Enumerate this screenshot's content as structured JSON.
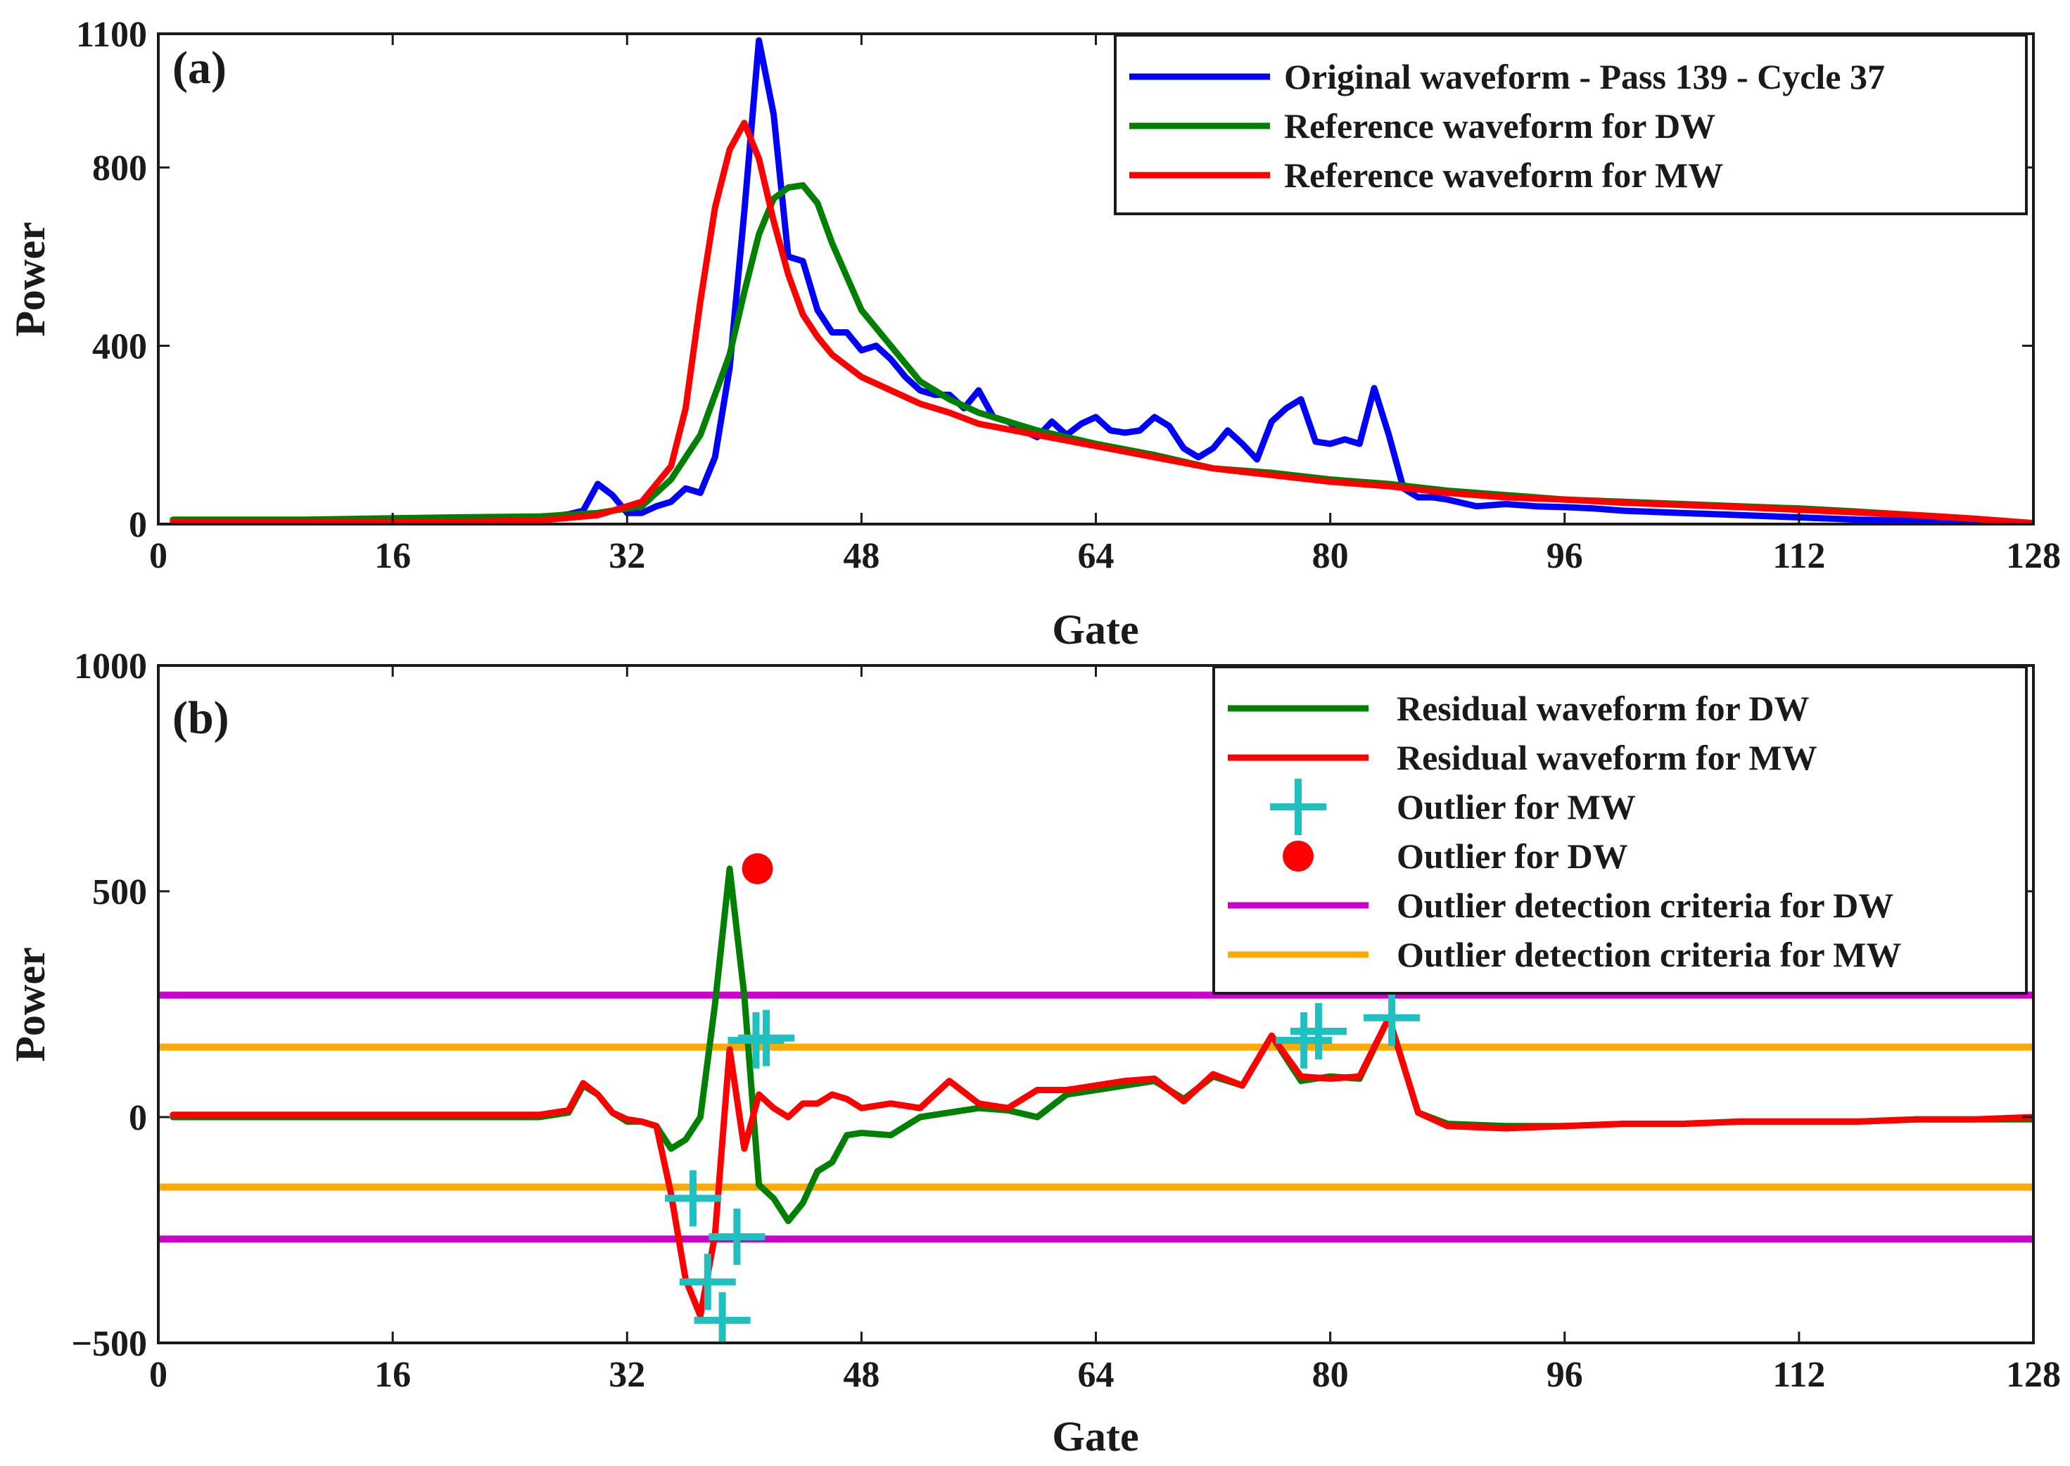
{
  "chart_data": [
    {
      "type": "line",
      "panel_label": "(a)",
      "xlabel": "Gate",
      "ylabel": "Power",
      "xlim": [
        0,
        128
      ],
      "ylim": [
        0,
        1100
      ],
      "xticks": [
        0,
        16,
        32,
        48,
        64,
        80,
        96,
        112,
        128
      ],
      "yticks": [
        0,
        400,
        800,
        1100
      ],
      "legend_position": "top-right",
      "series": [
        {
          "name": "Original waveform - Pass 139 - Cycle 37",
          "color": "#0000ff",
          "x": [
            1,
            5,
            10,
            15,
            20,
            25,
            28,
            29,
            30,
            31,
            32,
            33,
            34,
            35,
            36,
            37,
            38,
            39,
            40,
            41,
            42,
            43,
            44,
            45,
            46,
            47,
            48,
            49,
            50,
            51,
            52,
            53,
            54,
            55,
            56,
            57,
            58,
            59,
            60,
            61,
            62,
            63,
            64,
            65,
            66,
            67,
            68,
            69,
            70,
            71,
            72,
            73,
            74,
            75,
            76,
            77,
            78,
            79,
            80,
            81,
            82,
            83,
            84,
            85,
            86,
            87,
            88,
            90,
            92,
            94,
            96,
            98,
            100,
            104,
            108,
            112,
            116,
            120,
            124,
            128
          ],
          "y": [
            8,
            8,
            8,
            8,
            10,
            10,
            22,
            30,
            90,
            65,
            25,
            25,
            40,
            50,
            80,
            70,
            150,
            350,
            700,
            1085,
            920,
            600,
            590,
            480,
            430,
            430,
            390,
            400,
            370,
            330,
            300,
            290,
            290,
            260,
            300,
            240,
            230,
            210,
            195,
            230,
            200,
            225,
            240,
            210,
            205,
            210,
            240,
            220,
            170,
            150,
            170,
            210,
            180,
            145,
            230,
            260,
            280,
            185,
            180,
            190,
            180,
            305,
            200,
            80,
            60,
            60,
            55,
            40,
            45,
            40,
            38,
            35,
            30,
            25,
            20,
            15,
            10,
            8,
            5,
            0
          ]
        },
        {
          "name": "Reference waveform for DW",
          "color": "#008000",
          "x": [
            1,
            10,
            20,
            26,
            30,
            33,
            35,
            37,
            39,
            40,
            41,
            42,
            43,
            44,
            45,
            46,
            48,
            50,
            52,
            54,
            56,
            60,
            64,
            68,
            72,
            76,
            80,
            84,
            88,
            92,
            96,
            100,
            104,
            108,
            112,
            116,
            120,
            124,
            128
          ],
          "y": [
            10,
            10,
            15,
            17,
            25,
            40,
            100,
            200,
            380,
            520,
            650,
            730,
            755,
            760,
            720,
            630,
            480,
            400,
            320,
            280,
            250,
            210,
            180,
            155,
            125,
            115,
            100,
            90,
            75,
            65,
            55,
            50,
            45,
            40,
            35,
            28,
            20,
            12,
            0
          ],
          "x_note": "gate indices"
        },
        {
          "name": "Reference waveform for MW",
          "color": "#ff0000",
          "x": [
            1,
            10,
            20,
            26,
            30,
            33,
            35,
            36,
            37,
            38,
            39,
            40,
            41,
            42,
            43,
            44,
            45,
            46,
            48,
            50,
            52,
            54,
            56,
            60,
            64,
            68,
            72,
            76,
            80,
            84,
            88,
            92,
            96,
            100,
            104,
            108,
            112,
            116,
            120,
            124,
            128
          ],
          "y": [
            5,
            5,
            5,
            8,
            20,
            50,
            130,
            260,
            500,
            710,
            840,
            900,
            820,
            680,
            560,
            470,
            420,
            380,
            330,
            300,
            270,
            250,
            225,
            200,
            175,
            150,
            125,
            110,
            95,
            85,
            70,
            60,
            55,
            48,
            43,
            38,
            32,
            26,
            20,
            12,
            2
          ]
        }
      ]
    },
    {
      "type": "line",
      "panel_label": "(b)",
      "xlabel": "Gate",
      "ylabel": "Power",
      "xlim": [
        0,
        128
      ],
      "ylim": [
        -500,
        1000
      ],
      "xticks": [
        0,
        16,
        32,
        48,
        64,
        80,
        96,
        112,
        128
      ],
      "yticks": [
        -500,
        0,
        500,
        1000
      ],
      "legend_position": "top-right",
      "series": [
        {
          "name": "Residual waveform for DW",
          "color": "#008000",
          "kind": "line",
          "x": [
            1,
            10,
            20,
            26,
            28,
            29,
            30,
            31,
            32,
            33,
            34,
            35,
            36,
            37,
            38,
            39,
            40,
            41,
            42,
            43,
            44,
            45,
            46,
            47,
            48,
            50,
            52,
            54,
            56,
            58,
            60,
            62,
            64,
            66,
            68,
            70,
            72,
            74,
            76,
            78,
            80,
            82,
            84,
            86,
            88,
            92,
            96,
            100,
            104,
            108,
            112,
            116,
            120,
            124,
            128
          ],
          "y": [
            0,
            0,
            0,
            0,
            10,
            70,
            50,
            10,
            -10,
            -10,
            -20,
            -70,
            -50,
            0,
            250,
            550,
            270,
            -150,
            -180,
            -230,
            -190,
            -120,
            -100,
            -40,
            -35,
            -40,
            0,
            10,
            20,
            15,
            0,
            50,
            60,
            70,
            80,
            40,
            90,
            70,
            180,
            80,
            90,
            85,
            220,
            10,
            -15,
            -20,
            -20,
            -15,
            -15,
            -10,
            -10,
            -10,
            -5,
            -5,
            -5
          ]
        },
        {
          "name": "Residual waveform for MW",
          "color": "#ff0000",
          "kind": "line",
          "x": [
            1,
            10,
            20,
            26,
            28,
            29,
            30,
            31,
            32,
            33,
            34,
            35,
            36,
            37,
            38,
            39,
            40,
            41,
            42,
            43,
            44,
            45,
            46,
            47,
            48,
            50,
            52,
            54,
            56,
            58,
            60,
            62,
            64,
            66,
            68,
            70,
            72,
            74,
            76,
            78,
            80,
            82,
            84,
            86,
            88,
            92,
            96,
            100,
            104,
            108,
            112,
            116,
            120,
            124,
            128
          ],
          "y": [
            5,
            5,
            5,
            5,
            15,
            75,
            50,
            10,
            -5,
            -10,
            -20,
            -170,
            -360,
            -440,
            -260,
            150,
            -70,
            50,
            20,
            0,
            30,
            30,
            50,
            40,
            20,
            30,
            20,
            80,
            30,
            20,
            60,
            60,
            70,
            80,
            85,
            35,
            95,
            70,
            180,
            90,
            85,
            90,
            220,
            10,
            -20,
            -25,
            -20,
            -15,
            -15,
            -10,
            -10,
            -10,
            -5,
            -5,
            0
          ]
        },
        {
          "name": "Outlier for MW",
          "color": "#20c0c0",
          "kind": "marker-plus",
          "x": [
            36.5,
            37.5,
            38.5,
            39.5,
            40.8,
            41.5,
            78.2,
            79.2,
            84.2
          ],
          "y": [
            -180,
            -365,
            -450,
            -265,
            170,
            175,
            170,
            190,
            220
          ]
        },
        {
          "name": "Outlier for DW",
          "color": "#ff0000",
          "kind": "marker-dot",
          "x": [
            40.9
          ],
          "y": [
            550
          ]
        },
        {
          "name": "Outlier detection criteria for DW",
          "color": "#cc00cc",
          "kind": "hline",
          "y_values": [
            270,
            -270
          ]
        },
        {
          "name": "Outlier detection criteria for MW",
          "color": "#ffaa00",
          "kind": "hline",
          "y_values": [
            155,
            -155
          ]
        }
      ]
    }
  ]
}
